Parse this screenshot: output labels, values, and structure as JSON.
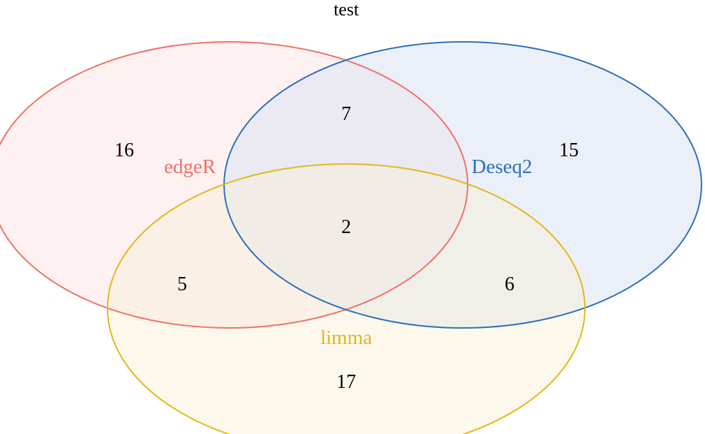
{
  "title": "test",
  "sets": [
    {
      "key": "edger",
      "label": "edgeR",
      "color": "#f07167",
      "fill": "#fde8ea"
    },
    {
      "key": "deseq2",
      "label": "Deseq2",
      "color": "#2a6fbb",
      "fill": "#dbe4f3"
    },
    {
      "key": "limma",
      "label": "limma",
      "color": "#e2b71a",
      "fill": "#f8f0d5"
    }
  ],
  "regions": {
    "edger_only": "16",
    "deseq2_only": "15",
    "limma_only": "17",
    "edger_deseq2": "7",
    "edger_limma": "5",
    "deseq2_limma": "6",
    "all_three": "2"
  }
}
